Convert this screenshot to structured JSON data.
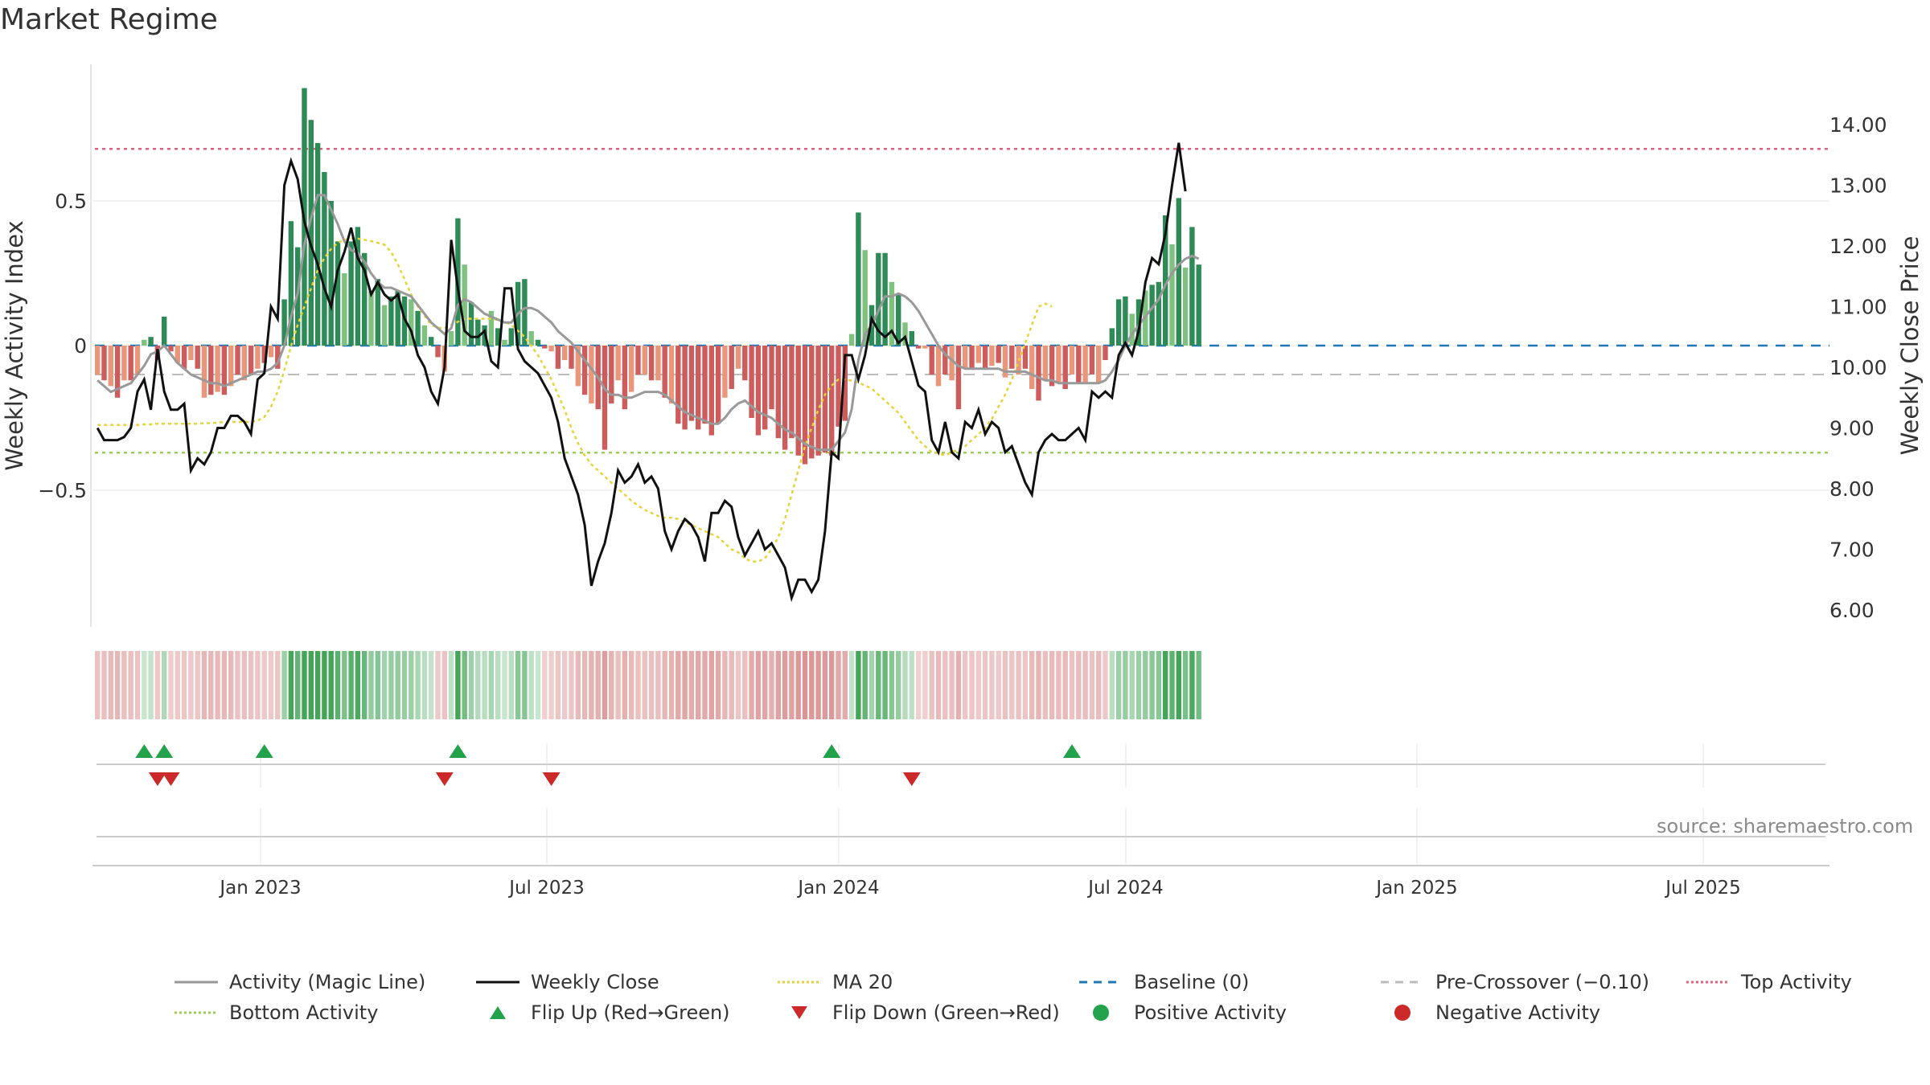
{
  "page": {
    "title": "Market Regime",
    "source": "source: sharemaestro.com"
  },
  "colors": {
    "green_strong": "#2e8b57",
    "green_light": "#7fc27f",
    "red_strong": "#cd5c5c",
    "red_light": "#e9967a",
    "magic_line": "#999999",
    "weekly_close": "#111111",
    "ma20": "#e8d23a",
    "baseline": "#1f77b4",
    "pre_crossover": "#bbbbbb",
    "top_activity": "#e0607e",
    "bottom_activity": "#9acd5a",
    "flip_up": "#22a24a",
    "flip_down": "#cc2a2a"
  },
  "chart_data": {
    "type": "bar+line",
    "ylabel_left": "Weekly Activity Index",
    "ylabel_right": "Weekly Close Price",
    "left_ticks": [
      "0.5",
      "0",
      "−0.5"
    ],
    "left_tick_values": [
      0.5,
      0,
      -0.5
    ],
    "right_ticks": [
      "14.00",
      "13.00",
      "12.00",
      "11.00",
      "10.00",
      "9.00",
      "8.00",
      "7.00",
      "6.00"
    ],
    "right_tick_values": [
      14,
      13,
      12,
      11,
      10,
      9,
      8,
      7,
      6
    ],
    "x_ticks": [
      "Jan 2023",
      "Jul 2023",
      "Jan 2024",
      "Jul 2024",
      "Jan 2025",
      "Jul 2025"
    ],
    "reference_lines": {
      "top_activity": 0.68,
      "bottom_activity": -0.37,
      "pre_crossover": -0.1,
      "baseline": 0
    },
    "activity": [
      -0.1,
      -0.12,
      -0.14,
      -0.18,
      -0.12,
      -0.12,
      -0.1,
      0.02,
      0.03,
      -0.05,
      0.1,
      -0.02,
      -0.06,
      -0.08,
      -0.05,
      -0.08,
      -0.18,
      -0.17,
      -0.16,
      -0.17,
      -0.14,
      -0.1,
      -0.12,
      -0.1,
      -0.08,
      -0.06,
      -0.04,
      -0.08,
      0.16,
      0.43,
      0.34,
      0.89,
      0.78,
      0.7,
      0.6,
      0.5,
      0.36,
      0.25,
      0.36,
      0.41,
      0.32,
      0.19,
      0.23,
      0.14,
      0.17,
      0.19,
      0.17,
      0.16,
      0.12,
      0.07,
      0.03,
      -0.04,
      -0.09,
      0.05,
      0.44,
      0.28,
      0.15,
      0.09,
      0.07,
      0.12,
      0.06,
      0.02,
      0.06,
      0.22,
      0.23,
      0.05,
      0.02,
      -0.01,
      -0.02,
      -0.08,
      -0.05,
      -0.08,
      -0.14,
      -0.17,
      -0.2,
      -0.22,
      -0.36,
      -0.2,
      -0.12,
      -0.22,
      -0.16,
      -0.1,
      -0.1,
      -0.12,
      -0.12,
      -0.18,
      -0.2,
      -0.27,
      -0.29,
      -0.26,
      -0.29,
      -0.27,
      -0.31,
      -0.27,
      -0.18,
      -0.15,
      -0.08,
      -0.12,
      -0.25,
      -0.31,
      -0.29,
      -0.22,
      -0.32,
      -0.36,
      -0.32,
      -0.38,
      -0.41,
      -0.39,
      -0.38,
      -0.37,
      -0.38,
      -0.28,
      -0.26,
      0.04,
      0.46,
      0.33,
      0.14,
      0.32,
      0.32,
      0.22,
      0.18,
      0.08,
      0.05,
      -0.01,
      -0.01,
      -0.1,
      -0.14,
      -0.1,
      -0.12,
      -0.22,
      -0.08,
      -0.08,
      -0.06,
      -0.08,
      -0.07,
      -0.06,
      -0.11,
      -0.08,
      -0.1,
      -0.08,
      -0.15,
      -0.19,
      -0.12,
      -0.14,
      -0.13,
      -0.15,
      -0.1,
      -0.13,
      -0.13,
      -0.1,
      -0.13,
      -0.05,
      0.06,
      0.16,
      0.17,
      0.11,
      0.16,
      0.19,
      0.21,
      0.22,
      0.45,
      0.35,
      0.51,
      0.27,
      0.41,
      0.28
    ],
    "magic_line": [
      -0.12,
      -0.14,
      -0.16,
      -0.15,
      -0.14,
      -0.13,
      -0.1,
      -0.07,
      -0.03,
      -0.02,
      0.0,
      -0.03,
      -0.06,
      -0.08,
      -0.1,
      -0.11,
      -0.12,
      -0.13,
      -0.13,
      -0.14,
      -0.13,
      -0.12,
      -0.11,
      -0.1,
      -0.09,
      -0.09,
      -0.08,
      -0.06,
      0.0,
      0.1,
      0.18,
      0.35,
      0.44,
      0.52,
      0.52,
      0.47,
      0.42,
      0.36,
      0.33,
      0.32,
      0.29,
      0.25,
      0.22,
      0.2,
      0.2,
      0.19,
      0.18,
      0.17,
      0.14,
      0.11,
      0.08,
      0.06,
      0.04,
      0.06,
      0.14,
      0.16,
      0.15,
      0.13,
      0.11,
      0.1,
      0.09,
      0.08,
      0.08,
      0.11,
      0.13,
      0.13,
      0.12,
      0.1,
      0.08,
      0.05,
      0.03,
      0.01,
      -0.02,
      -0.05,
      -0.08,
      -0.11,
      -0.15,
      -0.17,
      -0.17,
      -0.18,
      -0.18,
      -0.17,
      -0.16,
      -0.16,
      -0.16,
      -0.17,
      -0.19,
      -0.21,
      -0.23,
      -0.24,
      -0.25,
      -0.26,
      -0.27,
      -0.27,
      -0.25,
      -0.22,
      -0.2,
      -0.19,
      -0.21,
      -0.23,
      -0.24,
      -0.25,
      -0.27,
      -0.29,
      -0.3,
      -0.32,
      -0.34,
      -0.35,
      -0.36,
      -0.36,
      -0.36,
      -0.33,
      -0.3,
      -0.22,
      -0.05,
      0.04,
      0.07,
      0.12,
      0.17,
      0.17,
      0.18,
      0.17,
      0.15,
      0.12,
      0.08,
      0.04,
      0.0,
      -0.03,
      -0.05,
      -0.07,
      -0.08,
      -0.08,
      -0.08,
      -0.08,
      -0.08,
      -0.08,
      -0.09,
      -0.09,
      -0.09,
      -0.09,
      -0.1,
      -0.11,
      -0.12,
      -0.12,
      -0.13,
      -0.13,
      -0.13,
      -0.13,
      -0.13,
      -0.13,
      -0.13,
      -0.12,
      -0.09,
      -0.05,
      0.0,
      0.04,
      0.07,
      0.1,
      0.13,
      0.16,
      0.21,
      0.25,
      0.28,
      0.3,
      0.31,
      0.3
    ],
    "weekly_close": [
      9.0,
      8.8,
      8.8,
      8.8,
      8.85,
      9.0,
      9.6,
      9.8,
      9.3,
      10.3,
      9.6,
      9.3,
      9.3,
      9.4,
      8.3,
      8.5,
      8.4,
      8.6,
      9.0,
      9.0,
      9.2,
      9.2,
      9.1,
      8.9,
      9.8,
      9.9,
      11.0,
      10.8,
      13.0,
      13.4,
      13.1,
      12.4,
      12.0,
      11.7,
      11.3,
      11.0,
      11.6,
      11.9,
      12.3,
      11.8,
      11.6,
      11.2,
      11.4,
      11.2,
      11.1,
      11.2,
      10.8,
      10.6,
      10.2,
      10.0,
      9.6,
      9.4,
      10.0,
      12.1,
      11.3,
      10.6,
      10.5,
      10.5,
      10.6,
      10.1,
      10.0,
      11.3,
      11.3,
      10.3,
      10.1,
      10.0,
      9.9,
      9.7,
      9.5,
      9.1,
      8.5,
      8.2,
      7.9,
      7.4,
      6.4,
      6.8,
      7.1,
      7.6,
      8.3,
      8.1,
      8.2,
      8.4,
      8.1,
      8.2,
      8.0,
      7.3,
      7.0,
      7.3,
      7.5,
      7.4,
      7.2,
      6.8,
      7.6,
      7.6,
      7.8,
      7.7,
      7.2,
      6.9,
      7.1,
      7.3,
      7.0,
      7.1,
      6.9,
      6.7,
      6.2,
      6.5,
      6.5,
      6.3,
      6.5,
      7.3,
      8.6,
      8.5,
      10.2,
      10.2,
      9.8,
      10.2,
      10.8,
      10.6,
      10.5,
      10.6,
      10.4,
      10.5,
      10.1,
      9.7,
      9.6,
      8.8,
      8.6,
      9.1,
      8.6,
      8.5,
      9.1,
      9.0,
      9.3,
      8.9,
      9.1,
      9.0,
      8.6,
      8.7,
      8.4,
      8.1,
      7.9,
      8.6,
      8.8,
      8.9,
      8.8,
      8.8,
      8.9,
      9.0,
      8.8,
      9.6,
      9.5,
      9.6,
      9.5,
      10.2,
      10.4,
      10.2,
      10.6,
      11.4,
      11.8,
      11.7,
      12.2,
      13.0,
      13.7,
      12.9
    ],
    "ma20": [
      9.05,
      9.05,
      9.05,
      9.05,
      9.05,
      9.05,
      9.05,
      9.06,
      9.06,
      9.07,
      9.07,
      9.07,
      9.07,
      9.07,
      9.07,
      9.07,
      9.08,
      9.08,
      9.09,
      9.1,
      9.1,
      9.1,
      9.1,
      9.1,
      9.12,
      9.18,
      9.35,
      9.6,
      9.95,
      10.35,
      10.7,
      11.0,
      11.3,
      11.6,
      11.8,
      11.95,
      12.05,
      12.1,
      12.12,
      12.12,
      12.1,
      12.08,
      12.05,
      12.02,
      11.9,
      11.7,
      11.45,
      11.2,
      11.0,
      10.85,
      10.7,
      10.65,
      10.65,
      10.7,
      10.75,
      10.8,
      10.8,
      10.8,
      10.8,
      10.8,
      10.78,
      10.75,
      10.7,
      10.6,
      10.5,
      10.35,
      10.2,
      10.0,
      9.8,
      9.55,
      9.3,
      9.0,
      8.75,
      8.55,
      8.4,
      8.3,
      8.2,
      8.1,
      8.0,
      7.9,
      7.8,
      7.72,
      7.65,
      7.6,
      7.55,
      7.52,
      7.52,
      7.5,
      7.45,
      7.4,
      7.35,
      7.3,
      7.25,
      7.2,
      7.1,
      7.0,
      6.95,
      6.85,
      6.8,
      6.8,
      6.85,
      7.0,
      7.2,
      7.5,
      7.9,
      8.3,
      8.7,
      9.0,
      9.3,
      9.55,
      9.7,
      9.8,
      9.8,
      9.78,
      9.75,
      9.7,
      9.65,
      9.55,
      9.45,
      9.35,
      9.25,
      9.1,
      8.95,
      8.8,
      8.7,
      8.6,
      8.58,
      8.55,
      8.6,
      8.65,
      8.7,
      8.8,
      8.9,
      9.0,
      9.15,
      9.35,
      9.55,
      9.8,
      10.1,
      10.4,
      10.7,
      11.0,
      11.05,
      11.0
    ],
    "strip_values": [
      -0.1,
      -0.12,
      -0.14,
      -0.18,
      -0.12,
      -0.12,
      -0.1,
      0.02,
      0.03,
      -0.05,
      0.1,
      -0.02,
      -0.06,
      -0.08,
      -0.05,
      -0.08,
      -0.18,
      -0.17,
      -0.16,
      -0.17,
      -0.14,
      -0.1,
      -0.12,
      -0.1,
      -0.08,
      -0.06,
      -0.04,
      -0.08,
      0.16,
      0.43,
      0.34,
      0.89,
      0.78,
      0.7,
      0.6,
      0.5,
      0.36,
      0.25,
      0.36,
      0.41,
      0.32,
      0.19,
      0.23,
      0.14,
      0.17,
      0.19,
      0.17,
      0.16,
      0.12,
      0.07,
      0.03,
      -0.04,
      -0.09,
      0.05,
      0.44,
      0.28,
      0.15,
      0.09,
      0.07,
      0.12,
      0.06,
      0.02,
      0.06,
      0.22,
      0.23,
      0.05,
      0.02,
      -0.01,
      -0.02,
      -0.08,
      -0.05,
      -0.08,
      -0.14,
      -0.17,
      -0.2,
      -0.22,
      -0.36,
      -0.2,
      -0.12,
      -0.22,
      -0.16,
      -0.1,
      -0.1,
      -0.12,
      -0.12,
      -0.18,
      -0.2,
      -0.27,
      -0.29,
      -0.26,
      -0.29,
      -0.27,
      -0.31,
      -0.27,
      -0.18,
      -0.15,
      -0.08,
      -0.12,
      -0.25,
      -0.31,
      -0.29,
      -0.22,
      -0.32,
      -0.36,
      -0.32,
      -0.38,
      -0.41,
      -0.39,
      -0.38,
      -0.37,
      -0.38,
      -0.28,
      -0.26,
      0.04,
      0.46,
      0.33,
      0.14,
      0.32,
      0.32,
      0.22,
      0.18,
      0.08,
      0.05,
      -0.01,
      -0.01,
      -0.1,
      -0.14,
      -0.1,
      -0.12,
      -0.22,
      -0.08,
      -0.08,
      -0.06,
      -0.08,
      -0.07,
      -0.06,
      -0.11,
      -0.08,
      -0.1,
      -0.08,
      -0.15,
      -0.19,
      -0.12,
      -0.14,
      -0.13,
      -0.15,
      -0.1,
      -0.13,
      -0.13,
      -0.1,
      -0.13,
      -0.05,
      0.06,
      0.16,
      0.17,
      0.11,
      0.16,
      0.19,
      0.21,
      0.22,
      0.45,
      0.35,
      0.51,
      0.27,
      0.41,
      0.28
    ],
    "flip_up_weeks": [
      7,
      10,
      25,
      54,
      110,
      146
    ],
    "flip_down_weeks": [
      9,
      11,
      52,
      68,
      122
    ],
    "legend": [
      {
        "label": "Activity (Magic Line)",
        "kind": "line",
        "color_key": "magic_line",
        "dash": ""
      },
      {
        "label": "Weekly Close",
        "kind": "line",
        "color_key": "weekly_close",
        "dash": ""
      },
      {
        "label": "MA 20",
        "kind": "line",
        "color_key": "ma20",
        "dash": "3,3"
      },
      {
        "label": "Baseline (0)",
        "kind": "line",
        "color_key": "baseline",
        "dash": "10,8"
      },
      {
        "label": "Pre-Crossover (−0.10)",
        "kind": "line",
        "color_key": "pre_crossover",
        "dash": "10,8"
      },
      {
        "label": "Top Activity",
        "kind": "line",
        "color_key": "top_activity",
        "dash": "3,3"
      },
      {
        "label": "Bottom Activity",
        "kind": "line",
        "color_key": "bottom_activity",
        "dash": "3,3"
      },
      {
        "label": "Flip Up (Red→Green)",
        "kind": "tri-up",
        "color_key": "flip_up",
        "dash": ""
      },
      {
        "label": "Flip Down (Green→Red)",
        "kind": "tri-down",
        "color_key": "flip_down",
        "dash": ""
      },
      {
        "label": "Positive Activity",
        "kind": "dot",
        "color_key": "flip_up",
        "dash": ""
      },
      {
        "label": "Negative Activity",
        "kind": "dot",
        "color_key": "flip_down",
        "dash": ""
      }
    ]
  }
}
